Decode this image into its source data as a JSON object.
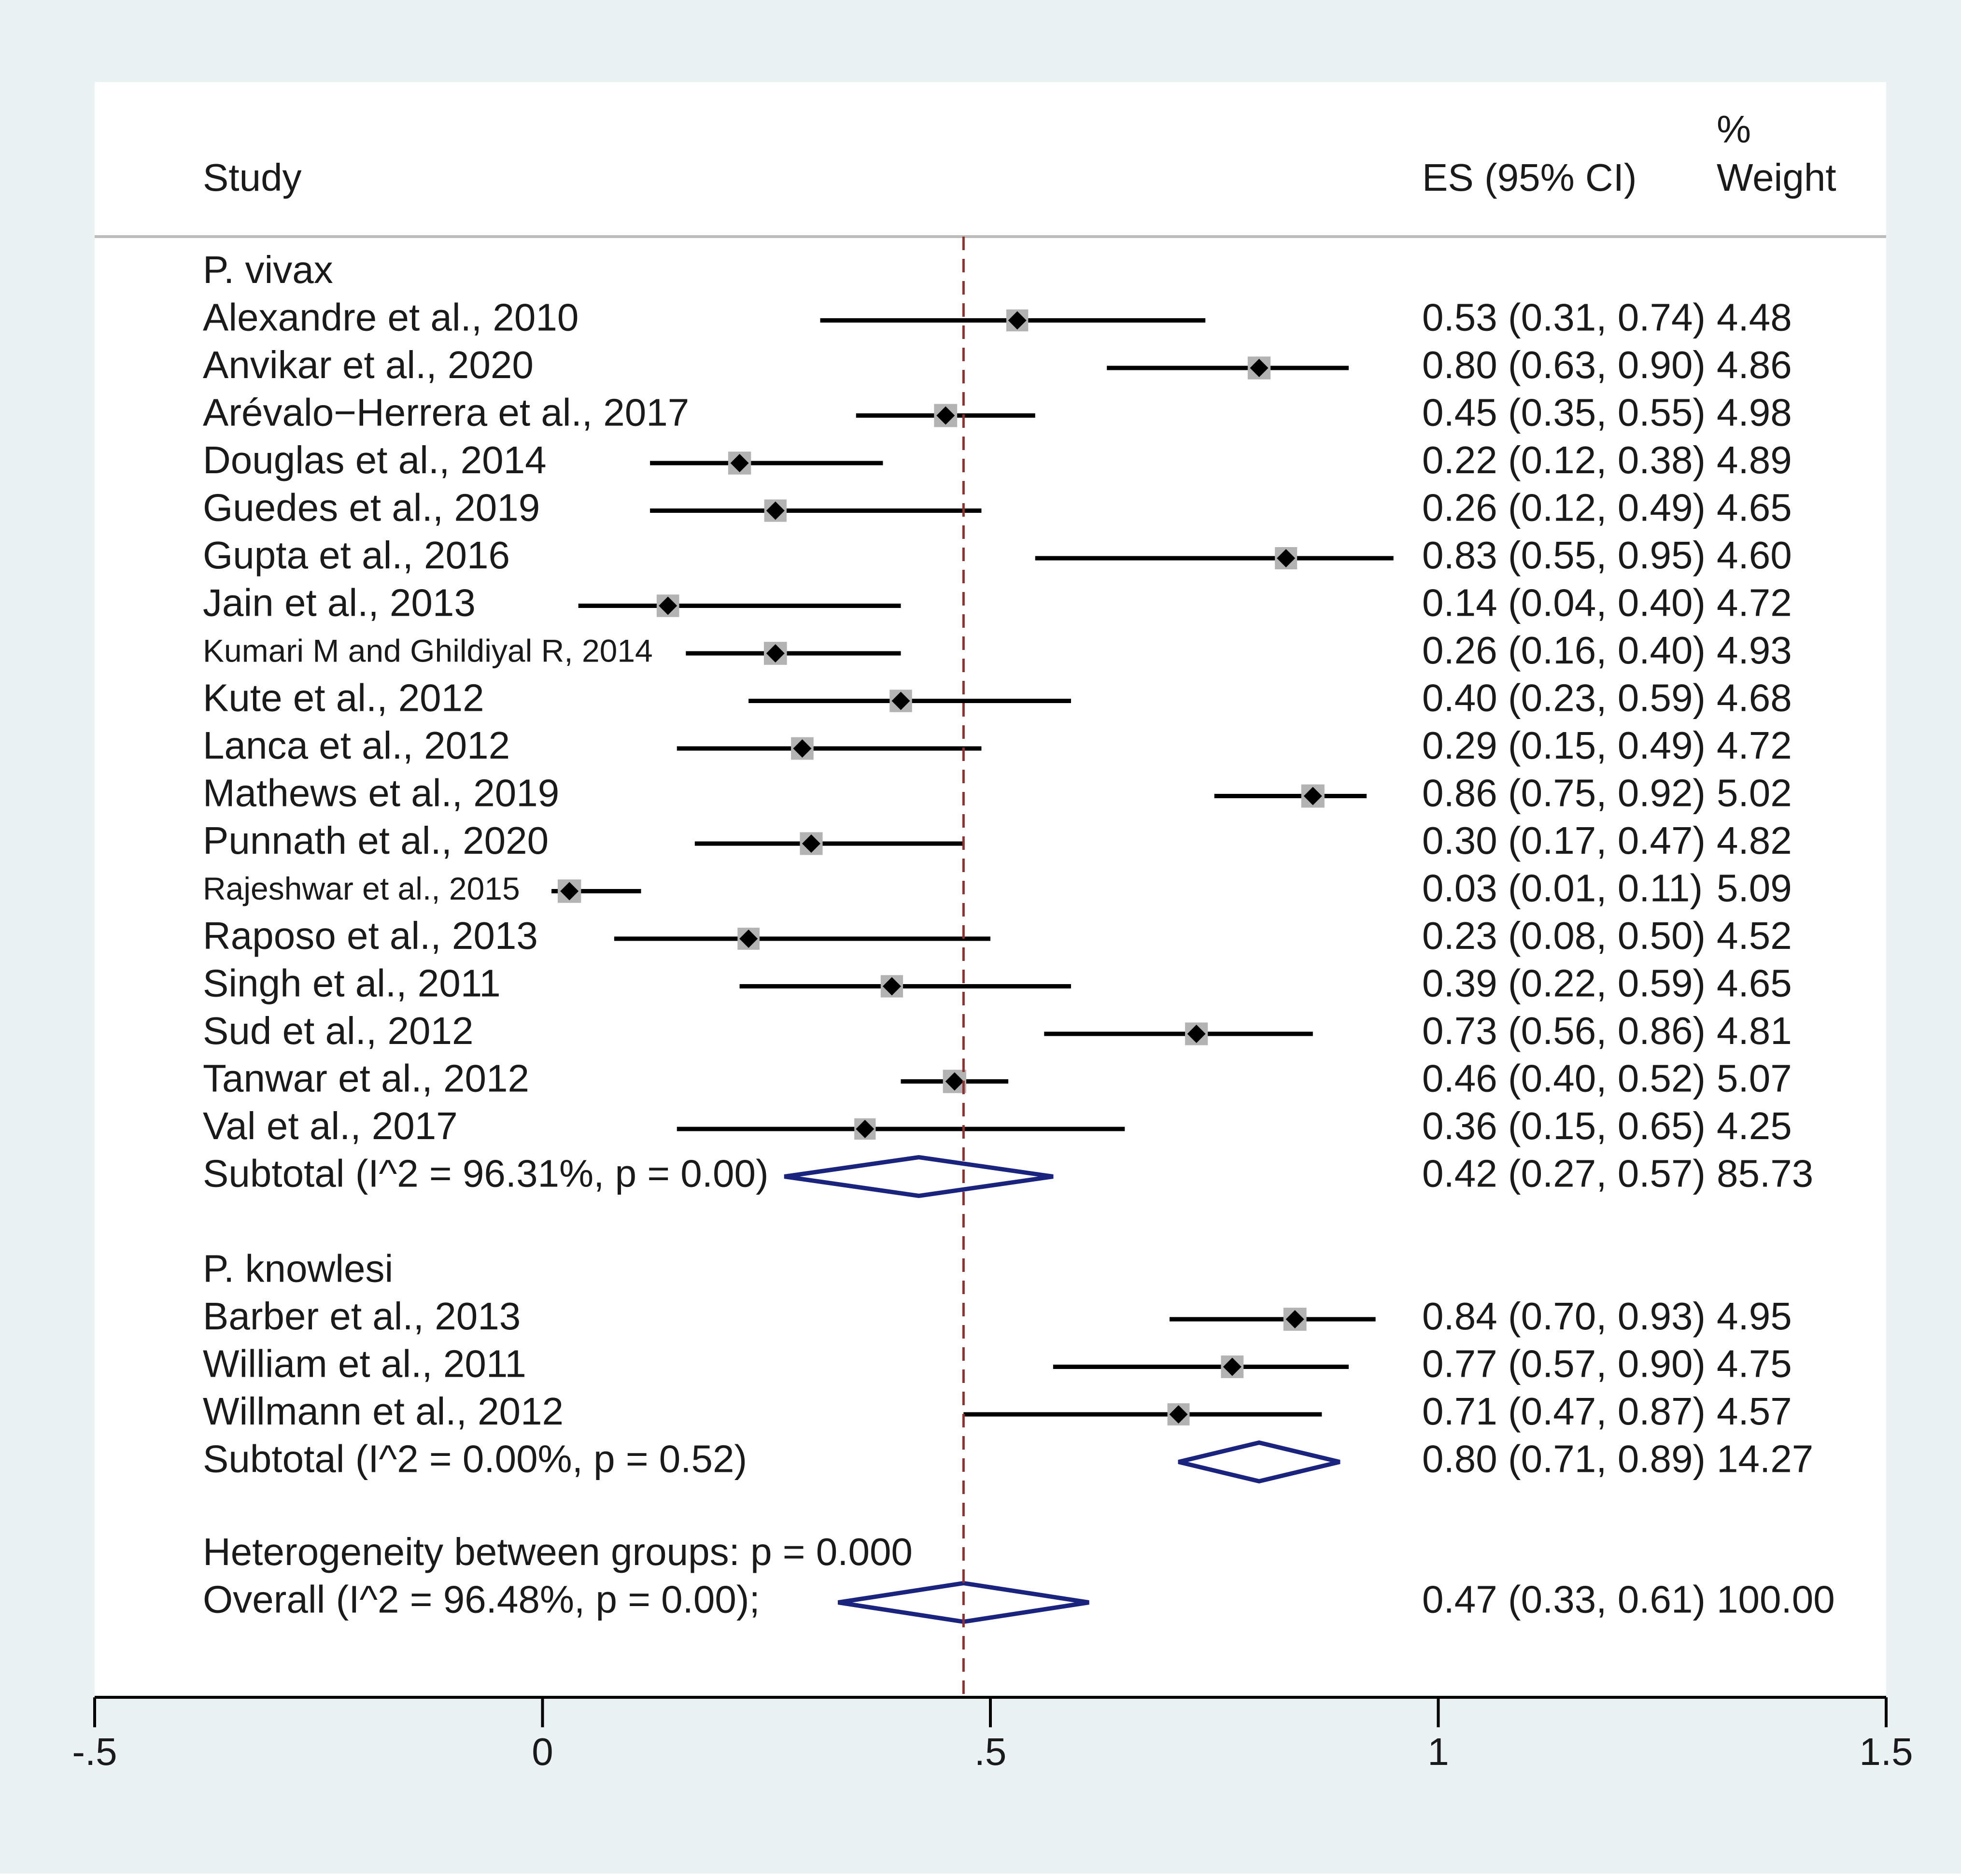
{
  "chart_data": {
    "type": "forest",
    "header": {
      "study": "Study",
      "es": "ES (95% CI)",
      "weight_line1": "%",
      "weight_line2": "Weight"
    },
    "xlim": [
      -0.5,
      1.5
    ],
    "xticks": [
      {
        "value": -0.5,
        "label": "-.5"
      },
      {
        "value": 0,
        "label": "0"
      },
      {
        "value": 0.5,
        "label": ".5"
      },
      {
        "value": 1,
        "label": "1"
      },
      {
        "value": 1.5,
        "label": "1.5"
      }
    ],
    "reference_line": 0.47,
    "groups": [
      {
        "name": "P. vivax",
        "studies": [
          {
            "label": "Alexandre et al., 2010",
            "es": 0.53,
            "lo": 0.31,
            "hi": 0.74,
            "es_text": "0.53 (0.31, 0.74)",
            "weight": "4.48"
          },
          {
            "label": "Anvikar et al., 2020",
            "es": 0.8,
            "lo": 0.63,
            "hi": 0.9,
            "es_text": "0.80 (0.63, 0.90)",
            "weight": "4.86"
          },
          {
            "label": "Arévalo−Herrera et al., 2017",
            "es": 0.45,
            "lo": 0.35,
            "hi": 0.55,
            "es_text": "0.45 (0.35, 0.55)",
            "weight": "4.98"
          },
          {
            "label": "Douglas et al., 2014",
            "es": 0.22,
            "lo": 0.12,
            "hi": 0.38,
            "es_text": "0.22 (0.12, 0.38)",
            "weight": "4.89"
          },
          {
            "label": "Guedes et al., 2019",
            "es": 0.26,
            "lo": 0.12,
            "hi": 0.49,
            "es_text": "0.26 (0.12, 0.49)",
            "weight": "4.65"
          },
          {
            "label": "Gupta et al., 2016",
            "es": 0.83,
            "lo": 0.55,
            "hi": 0.95,
            "es_text": "0.83 (0.55, 0.95)",
            "weight": "4.60"
          },
          {
            "label": "Jain et al., 2013",
            "es": 0.14,
            "lo": 0.04,
            "hi": 0.4,
            "es_text": "0.14 (0.04, 0.40)",
            "weight": "4.72"
          },
          {
            "label": "Kumari M and Ghildiyal R, 2014",
            "es": 0.26,
            "lo": 0.16,
            "hi": 0.4,
            "es_text": "0.26 (0.16, 0.40)",
            "weight": "4.93",
            "small": true
          },
          {
            "label": "Kute et al., 2012",
            "es": 0.4,
            "lo": 0.23,
            "hi": 0.59,
            "es_text": "0.40 (0.23, 0.59)",
            "weight": "4.68"
          },
          {
            "label": "Lanca et al., 2012",
            "es": 0.29,
            "lo": 0.15,
            "hi": 0.49,
            "es_text": "0.29 (0.15, 0.49)",
            "weight": "4.72"
          },
          {
            "label": "Mathews et al., 2019",
            "es": 0.86,
            "lo": 0.75,
            "hi": 0.92,
            "es_text": "0.86 (0.75, 0.92)",
            "weight": "5.02"
          },
          {
            "label": "Punnath et al., 2020",
            "es": 0.3,
            "lo": 0.17,
            "hi": 0.47,
            "es_text": "0.30 (0.17, 0.47)",
            "weight": "4.82"
          },
          {
            "label": "Rajeshwar et al., 2015",
            "es": 0.03,
            "lo": 0.01,
            "hi": 0.11,
            "es_text": "0.03 (0.01, 0.11)",
            "weight": "5.09",
            "small": true
          },
          {
            "label": "Raposo et al., 2013",
            "es": 0.23,
            "lo": 0.08,
            "hi": 0.5,
            "es_text": "0.23 (0.08, 0.50)",
            "weight": "4.52"
          },
          {
            "label": "Singh et al., 2011",
            "es": 0.39,
            "lo": 0.22,
            "hi": 0.59,
            "es_text": "0.39 (0.22, 0.59)",
            "weight": "4.65"
          },
          {
            "label": "Sud et al., 2012",
            "es": 0.73,
            "lo": 0.56,
            "hi": 0.86,
            "es_text": "0.73 (0.56, 0.86)",
            "weight": "4.81"
          },
          {
            "label": "Tanwar et al., 2012",
            "es": 0.46,
            "lo": 0.4,
            "hi": 0.52,
            "es_text": "0.46 (0.40, 0.52)",
            "weight": "5.07"
          },
          {
            "label": "Val et al., 2017",
            "es": 0.36,
            "lo": 0.15,
            "hi": 0.65,
            "es_text": "0.36 (0.15, 0.65)",
            "weight": "4.25"
          }
        ],
        "subtotal": {
          "label": "Subtotal  (I^2 = 96.31%, p = 0.00)",
          "es": 0.42,
          "lo": 0.27,
          "hi": 0.57,
          "es_text": "0.42 (0.27, 0.57)",
          "weight": "85.73"
        }
      },
      {
        "name": "P. knowlesi",
        "studies": [
          {
            "label": "Barber et al., 2013",
            "es": 0.84,
            "lo": 0.7,
            "hi": 0.93,
            "es_text": "0.84 (0.70, 0.93)",
            "weight": "4.95"
          },
          {
            "label": "William et al., 2011",
            "es": 0.77,
            "lo": 0.57,
            "hi": 0.9,
            "es_text": "0.77 (0.57, 0.90)",
            "weight": "4.75"
          },
          {
            "label": "Willmann et al., 2012",
            "es": 0.71,
            "lo": 0.47,
            "hi": 0.87,
            "es_text": "0.71 (0.47, 0.87)",
            "weight": "4.57"
          }
        ],
        "subtotal": {
          "label": "Subtotal  (I^2 = 0.00%, p = 0.52)",
          "es": 0.8,
          "lo": 0.71,
          "hi": 0.89,
          "es_text": "0.80 (0.71, 0.89)",
          "weight": "14.27"
        }
      }
    ],
    "heterogeneity_text": "Heterogeneity between groups: p = 0.000",
    "overall": {
      "label": "Overall  (I^2 = 96.48%, p = 0.00);",
      "es": 0.47,
      "lo": 0.33,
      "hi": 0.61,
      "es_text": "0.47 (0.33, 0.61)",
      "weight": "100.00"
    },
    "colors": {
      "outer_bg": "#eaf2f3",
      "plot_bg": "#ffffff",
      "header_rule": "#bdbdbd",
      "ci_line": "#000000",
      "weight_box": "#b3b3b3",
      "point": "#000000",
      "diamond": "#1a237e",
      "ref_line": "#9b2c2c",
      "axis": "#000000"
    }
  }
}
